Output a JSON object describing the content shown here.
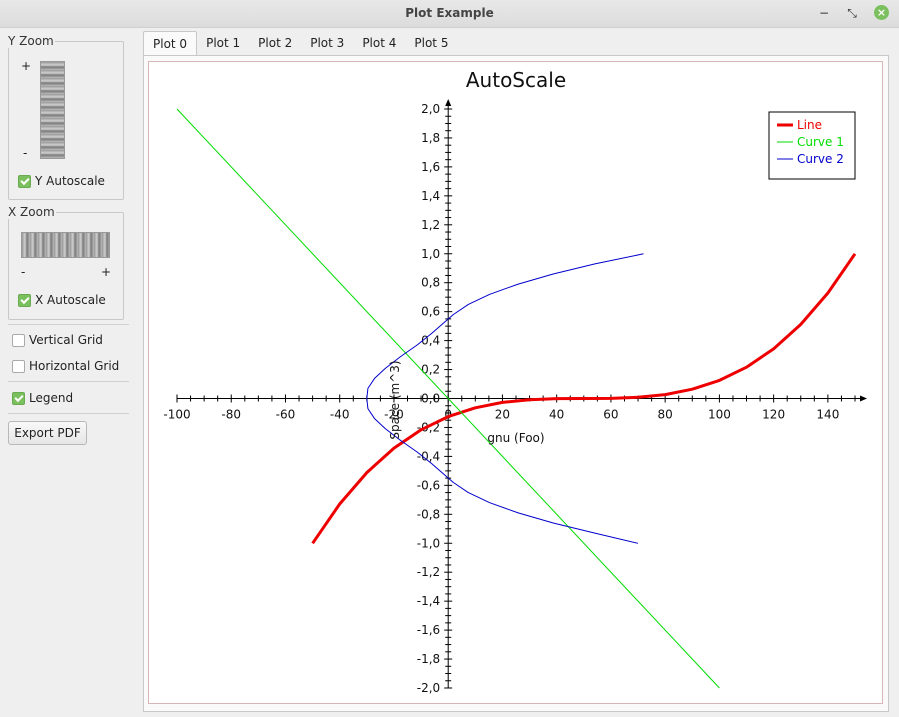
{
  "window": {
    "title": "Plot Example",
    "minimize_glyph": "−",
    "maximize_glyph": "⤡",
    "close_glyph": "×"
  },
  "sidebar": {
    "y_zoom": {
      "title": "Y Zoom",
      "plus": "+",
      "minus": "-",
      "autoscale_label": "Y Autoscale",
      "autoscale_checked": true
    },
    "x_zoom": {
      "title": "X Zoom",
      "minus": "-",
      "plus": "+",
      "autoscale_label": "X Autoscale",
      "autoscale_checked": true
    },
    "vertical_grid": {
      "label": "Vertical Grid",
      "checked": false
    },
    "horizontal_grid": {
      "label": "Horizontal Grid",
      "checked": false
    },
    "legend": {
      "label": "Legend",
      "checked": true
    },
    "export_label": "Export PDF"
  },
  "tabs": [
    {
      "label": "Plot 0",
      "active": true
    },
    {
      "label": "Plot 1",
      "active": false
    },
    {
      "label": "Plot 2",
      "active": false
    },
    {
      "label": "Plot 3",
      "active": false
    },
    {
      "label": "Plot 4",
      "active": false
    },
    {
      "label": "Plot 5",
      "active": false
    }
  ],
  "chart_data": {
    "type": "line",
    "title": "AutoScale",
    "xlabel": "gnu (Foo)",
    "ylabel": "Space (m^3)",
    "xlim": [
      -100,
      150
    ],
    "ylim": [
      -2.0,
      2.0
    ],
    "x_ticks": [
      "-100",
      "-80",
      "-60",
      "-40",
      "-20",
      "0",
      "20",
      "40",
      "60",
      "80",
      "100",
      "120",
      "140"
    ],
    "y_ticks": [
      "-2,0",
      "-1,8",
      "-1,6",
      "-1,4",
      "-1,2",
      "-1,0",
      "-0,8",
      "-0,6",
      "-0,4",
      "-0,2",
      "0,0",
      "0,2",
      "0,4",
      "0,6",
      "0,8",
      "1,0",
      "1,2",
      "1,4",
      "1,6",
      "1,8",
      "2,0"
    ],
    "grid": false,
    "legend_position": "top-right",
    "series": [
      {
        "name": "Line",
        "color": "#ee0000",
        "width": 3,
        "x": [
          -50,
          -40,
          -30,
          -20,
          -10,
          0,
          10,
          20,
          30,
          40,
          50,
          60,
          70,
          80,
          90,
          100,
          110,
          120,
          130,
          140,
          150
        ],
        "y": [
          -1.0,
          -0.729,
          -0.512,
          -0.343,
          -0.216,
          -0.125,
          -0.064,
          -0.027,
          -0.008,
          -0.001,
          0.0,
          0.001,
          0.008,
          0.027,
          0.064,
          0.125,
          0.216,
          0.343,
          0.512,
          0.729,
          1.0
        ]
      },
      {
        "name": "Curve 1",
        "color": "#00dd00",
        "width": 1,
        "x": [
          -100,
          100
        ],
        "y": [
          2.0,
          -2.0
        ]
      },
      {
        "name": "Curve 2",
        "color": "#0000cc",
        "width": 1,
        "x": [
          72,
          54.1,
          38.7,
          25.8,
          15.3,
          7.4,
          1.9,
          -1.8,
          -6.1,
          -11.4,
          -17.5,
          -23.1,
          -27.1,
          -29.6,
          -30.0,
          -29.6,
          -27.1,
          -23.1,
          -17.5,
          -11.4,
          -6.1,
          -1.8,
          1.9,
          7.4,
          15.3,
          25.8,
          38.7,
          54.1,
          70
        ],
        "y": [
          1.0,
          0.93,
          0.86,
          0.79,
          0.72,
          0.65,
          0.58,
          0.52,
          0.45,
          0.37,
          0.29,
          0.21,
          0.14,
          0.07,
          0.0,
          -0.07,
          -0.14,
          -0.21,
          -0.29,
          -0.37,
          -0.45,
          -0.52,
          -0.58,
          -0.65,
          -0.72,
          -0.79,
          -0.86,
          -0.93,
          -1.0
        ]
      }
    ]
  }
}
